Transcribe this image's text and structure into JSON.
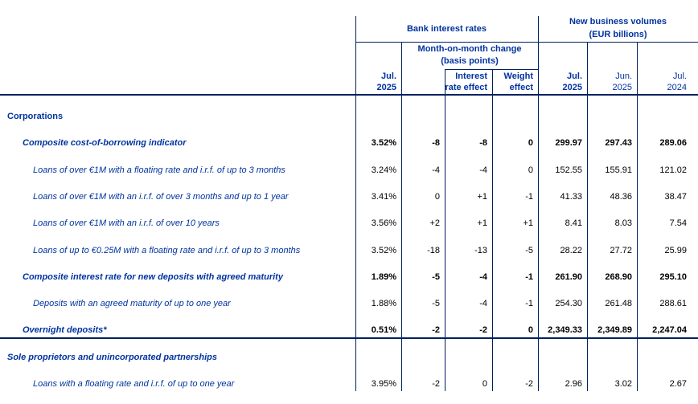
{
  "header": {
    "bank_interest_rates": "Bank interest rates",
    "new_business_volumes": {
      "line1": "New business volumes",
      "line2": "(EUR billions)"
    },
    "month_on_month": {
      "line1": "Month-on-month change",
      "line2": "(basis points)"
    },
    "columns": [
      {
        "id": "rate-jul-2025",
        "line1": "Jul.",
        "line2": "2025",
        "bold": true
      },
      {
        "id": "mom-change",
        "line1": "",
        "line2": "",
        "bold": false
      },
      {
        "id": "interest-rate-effect",
        "line1": "Interest",
        "line2": "rate effect",
        "bold": true
      },
      {
        "id": "weight-effect",
        "line1": "Weight",
        "line2": "effect",
        "bold": true
      },
      {
        "id": "volume-jul-2025",
        "line1": "Jul.",
        "line2": "2025",
        "bold": true
      },
      {
        "id": "volume-jun-2025",
        "line1": "Jun.",
        "line2": "2025",
        "bold": false
      },
      {
        "id": "volume-jul-2024",
        "line1": "Jul.",
        "line2": "2024",
        "bold": false
      }
    ]
  },
  "rows": [
    {
      "label": "Corporations",
      "style": "section",
      "indent": 0,
      "bold": false,
      "divider_after": false,
      "values": null
    },
    {
      "label": "Composite cost-of-borrowing indicator",
      "style": "bold-italic",
      "indent": 1,
      "bold": true,
      "divider_after": false,
      "values": [
        "3.52%",
        "-8",
        "-8",
        "0",
        "299.97",
        "297.43",
        "289.06"
      ]
    },
    {
      "label": "Loans of over €1M with a floating rate and i.r.f. of up to 3 months",
      "style": "italic",
      "indent": 2,
      "bold": false,
      "divider_after": false,
      "values": [
        "3.24%",
        "-4",
        "-4",
        "0",
        "152.55",
        "155.91",
        "121.02"
      ]
    },
    {
      "label": "Loans of over €1M with an i.r.f. of over 3 months and up to 1 year",
      "style": "italic",
      "indent": 2,
      "bold": false,
      "divider_after": false,
      "values": [
        "3.41%",
        "0",
        "+1",
        "-1",
        "41.33",
        "48.36",
        "38.47"
      ]
    },
    {
      "label": "Loans of over €1M with an i.r.f. of over 10 years",
      "style": "italic",
      "indent": 2,
      "bold": false,
      "divider_after": false,
      "values": [
        "3.56%",
        "+2",
        "+1",
        "+1",
        "8.41",
        "8.03",
        "7.54"
      ]
    },
    {
      "label": "Loans of up to €0.25M with a floating rate and i.r.f. of up to 3 months",
      "style": "italic",
      "indent": 2,
      "bold": false,
      "divider_after": false,
      "values": [
        "3.52%",
        "-18",
        "-13",
        "-5",
        "28.22",
        "27.72",
        "25.99"
      ]
    },
    {
      "label": "Composite interest rate for new deposits with agreed maturity",
      "style": "bold-italic",
      "indent": 1,
      "bold": true,
      "divider_after": false,
      "values": [
        "1.89%",
        "-5",
        "-4",
        "-1",
        "261.90",
        "268.90",
        "295.10"
      ]
    },
    {
      "label": "Deposits with an agreed maturity of up to one year",
      "style": "italic",
      "indent": 2,
      "bold": false,
      "divider_after": false,
      "values": [
        "1.88%",
        "-5",
        "-4",
        "-1",
        "254.30",
        "261.48",
        "288.61"
      ]
    },
    {
      "label": "Overnight deposits*",
      "style": "bold-italic",
      "indent": 1,
      "bold": true,
      "divider_after": true,
      "values": [
        "0.51%",
        "-2",
        "-2",
        "0",
        "2,349.33",
        "2,349.89",
        "2,247.04"
      ]
    },
    {
      "label": "Sole proprietors and unincorporated partnerships",
      "style": "section-italic",
      "indent": 0,
      "bold": false,
      "divider_after": false,
      "values": null
    },
    {
      "label": "Loans with a floating rate and i.r.f. of up to one year",
      "style": "italic",
      "indent": 2,
      "bold": false,
      "divider_after": false,
      "values": [
        "3.95%",
        "-2",
        "0",
        "-2",
        "2.96",
        "3.02",
        "2.67"
      ]
    }
  ],
  "colors": {
    "text_blue": "#0033A0",
    "line_navy": "#002060",
    "number_black": "#000000"
  }
}
